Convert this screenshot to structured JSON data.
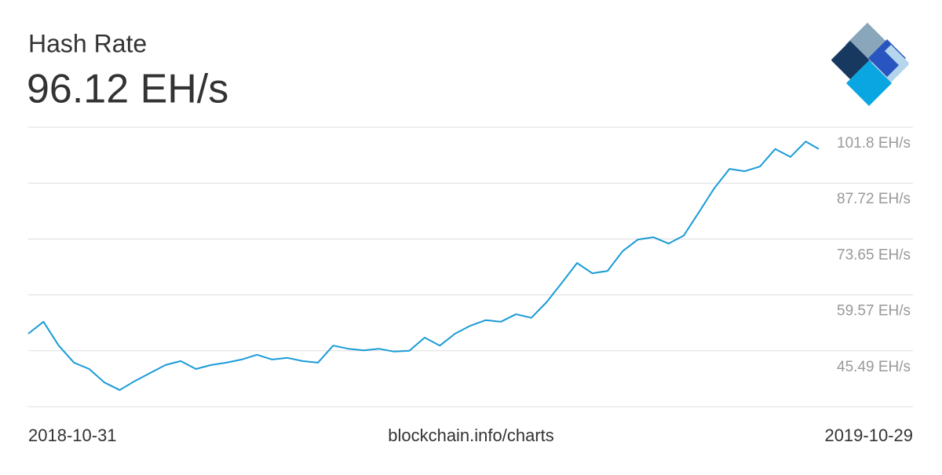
{
  "chart_data": {
    "type": "line",
    "title": "Hash Rate",
    "subtitle": "96.12 EH/s",
    "source": "blockchain.info/charts",
    "xlim": [
      "2018-10-31",
      "2019-10-29"
    ],
    "x": [
      "2018-10-31",
      "2018-11-07",
      "2018-11-14",
      "2018-11-21",
      "2018-11-28",
      "2018-12-05",
      "2018-12-12",
      "2018-12-19",
      "2018-12-26",
      "2019-01-02",
      "2019-01-09",
      "2019-01-16",
      "2019-01-23",
      "2019-01-30",
      "2019-02-06",
      "2019-02-13",
      "2019-02-20",
      "2019-02-27",
      "2019-03-06",
      "2019-03-13",
      "2019-03-20",
      "2019-03-27",
      "2019-04-03",
      "2019-04-10",
      "2019-04-17",
      "2019-04-24",
      "2019-05-01",
      "2019-05-08",
      "2019-05-15",
      "2019-05-22",
      "2019-05-29",
      "2019-06-05",
      "2019-06-12",
      "2019-06-19",
      "2019-06-26",
      "2019-07-03",
      "2019-07-10",
      "2019-07-17",
      "2019-07-24",
      "2019-07-31",
      "2019-08-07",
      "2019-08-14",
      "2019-08-21",
      "2019-08-28",
      "2019-09-04",
      "2019-09-11",
      "2019-09-18",
      "2019-09-25",
      "2019-10-02",
      "2019-10-09",
      "2019-10-16",
      "2019-10-23",
      "2019-10-29"
    ],
    "series": [
      {
        "name": "Hash Rate",
        "color": "#1a9bd7",
        "values": [
          49.8,
          52.8,
          46.8,
          42.5,
          40.9,
          37.5,
          35.6,
          37.9,
          39.9,
          41.9,
          42.9,
          40.9,
          41.9,
          42.5,
          43.3,
          44.5,
          43.3,
          43.7,
          42.9,
          42.5,
          46.8,
          46.0,
          45.6,
          46.0,
          45.3,
          45.5,
          48.8,
          46.8,
          49.8,
          51.8,
          53.2,
          52.8,
          54.7,
          53.8,
          57.7,
          62.6,
          67.6,
          65.0,
          65.6,
          70.6,
          73.5,
          74.1,
          72.5,
          74.5,
          80.4,
          86.4,
          91.3,
          90.7,
          91.9,
          96.3,
          94.3,
          98.2,
          96.3
        ]
      }
    ],
    "ylim": [
      31.41,
      101.8
    ],
    "yticks": [
      {
        "value": 101.8,
        "label": "101.8 EH/s"
      },
      {
        "value": 87.72,
        "label": "87.72 EH/s"
      },
      {
        "value": 73.65,
        "label": "73.65 EH/s"
      },
      {
        "value": 59.57,
        "label": "59.57 EH/s"
      },
      {
        "value": 45.49,
        "label": "45.49 EH/s"
      }
    ],
    "grid": true
  }
}
